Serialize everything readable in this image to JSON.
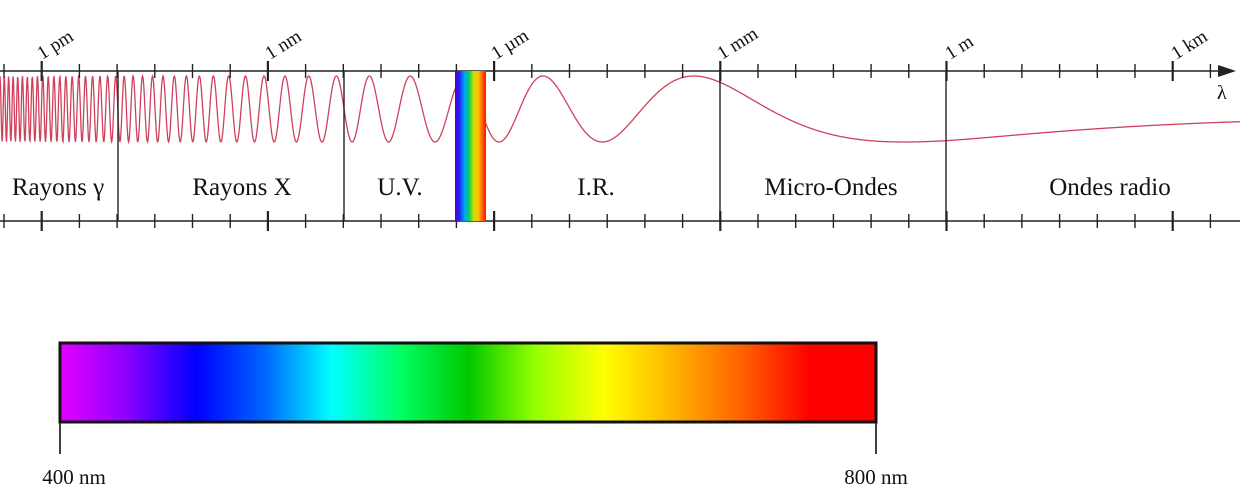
{
  "scale": {
    "axis_symbol": "λ",
    "ticks": [
      "1 pm",
      "1 nm",
      "1 µm",
      "1 mm",
      "1 m",
      "1 km"
    ]
  },
  "bands": [
    {
      "id": "gamma",
      "label": "Rayons γ"
    },
    {
      "id": "xray",
      "label": "Rayons X"
    },
    {
      "id": "uv",
      "label": "U.V."
    },
    {
      "id": "visible",
      "label": ""
    },
    {
      "id": "ir",
      "label": "I.R."
    },
    {
      "id": "microwave",
      "label": "Micro-Ondes"
    },
    {
      "id": "radio",
      "label": "Ondes radio"
    }
  ],
  "visible_spectrum": {
    "min_label": "400 nm",
    "max_label": "800 nm",
    "gradient_colors": [
      "#e400ff",
      "#8a00ff",
      "#0000ff",
      "#0064ff",
      "#00ffff",
      "#00ff64",
      "#00c800",
      "#96ff00",
      "#ffff00",
      "#ffb400",
      "#ff6400",
      "#ff0000",
      "#ff0000"
    ]
  },
  "colors": {
    "wave": "#d0405a",
    "axis": "#222222"
  }
}
